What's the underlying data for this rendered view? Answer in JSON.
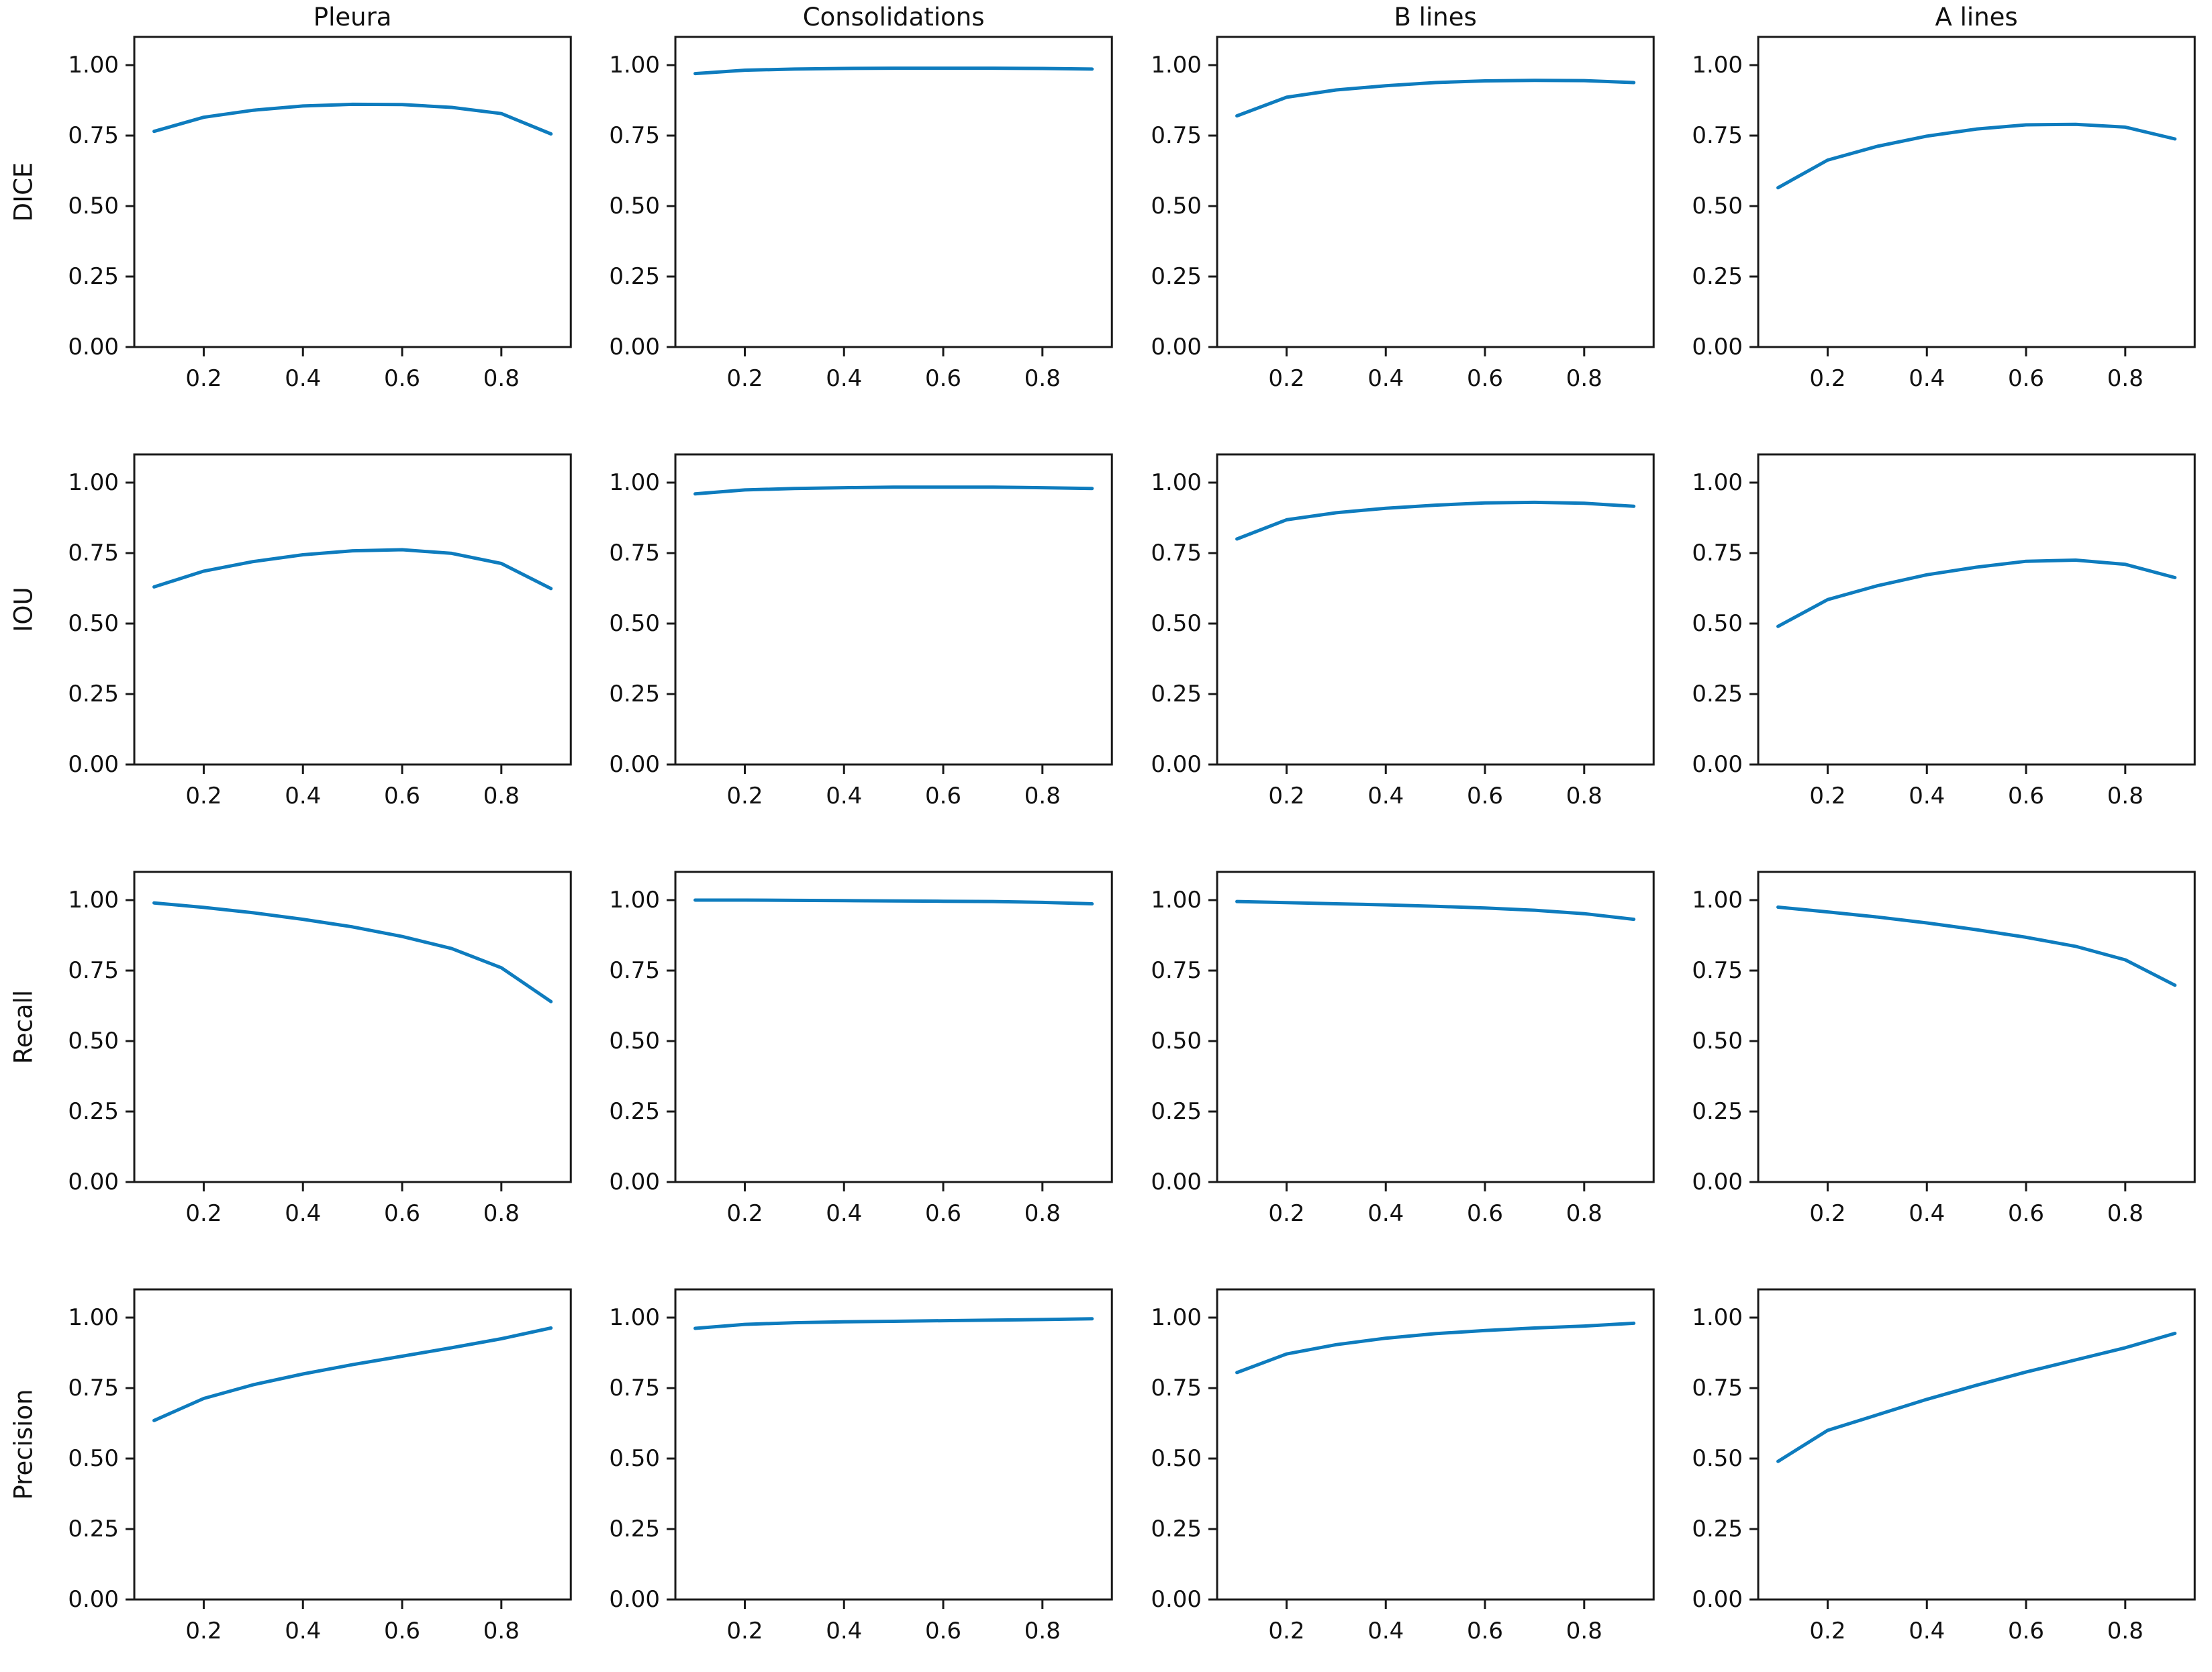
{
  "figure": {
    "background": "#ffffff",
    "line_color": "#0e7cbe",
    "spine_color": "#1a1a1a",
    "tick_label_color": "#111111"
  },
  "chart_data": {
    "type": "line",
    "layout": "4x4-grid",
    "row_labels": [
      "DICE",
      "IOU",
      "Recall",
      "Precision"
    ],
    "col_titles": [
      "Pleura",
      "Consolidations",
      "B lines",
      "A lines"
    ],
    "x": [
      0.1,
      0.2,
      0.3,
      0.4,
      0.5,
      0.6,
      0.7,
      0.8,
      0.9
    ],
    "x_ticks": [
      0.2,
      0.4,
      0.6,
      0.8
    ],
    "x_tick_labels": [
      "0.2",
      "0.4",
      "0.6",
      "0.8"
    ],
    "y_ticks": [
      0.0,
      0.25,
      0.5,
      0.75,
      1.0
    ],
    "y_tick_labels": [
      "0.00",
      "0.25",
      "0.50",
      "0.75",
      "1.00"
    ],
    "xlim": [
      0.06,
      0.94
    ],
    "ylim": [
      0.0,
      1.1
    ],
    "grid": false,
    "legend": "none",
    "cells": [
      {
        "metric": "DICE",
        "class": "Pleura",
        "values": [
          0.765,
          0.815,
          0.84,
          0.855,
          0.861,
          0.86,
          0.85,
          0.828,
          0.756
        ]
      },
      {
        "metric": "DICE",
        "class": "Consolidations",
        "values": [
          0.97,
          0.982,
          0.986,
          0.988,
          0.989,
          0.989,
          0.989,
          0.988,
          0.986
        ]
      },
      {
        "metric": "DICE",
        "class": "B lines",
        "values": [
          0.82,
          0.886,
          0.912,
          0.927,
          0.938,
          0.944,
          0.946,
          0.945,
          0.938
        ]
      },
      {
        "metric": "DICE",
        "class": "A lines",
        "values": [
          0.565,
          0.663,
          0.712,
          0.748,
          0.773,
          0.788,
          0.79,
          0.78,
          0.738
        ]
      },
      {
        "metric": "IOU",
        "class": "Pleura",
        "values": [
          0.63,
          0.686,
          0.72,
          0.744,
          0.758,
          0.762,
          0.749,
          0.713,
          0.624
        ]
      },
      {
        "metric": "IOU",
        "class": "Consolidations",
        "values": [
          0.96,
          0.974,
          0.979,
          0.982,
          0.984,
          0.984,
          0.984,
          0.982,
          0.979
        ]
      },
      {
        "metric": "IOU",
        "class": "B lines",
        "values": [
          0.8,
          0.868,
          0.893,
          0.909,
          0.92,
          0.928,
          0.93,
          0.927,
          0.916
        ]
      },
      {
        "metric": "IOU",
        "class": "A lines",
        "values": [
          0.49,
          0.585,
          0.634,
          0.673,
          0.7,
          0.721,
          0.725,
          0.71,
          0.663
        ]
      },
      {
        "metric": "Recall",
        "class": "Pleura",
        "values": [
          0.99,
          0.974,
          0.955,
          0.932,
          0.905,
          0.871,
          0.828,
          0.76,
          0.64
        ]
      },
      {
        "metric": "Recall",
        "class": "Consolidations",
        "values": [
          1.0,
          1.0,
          0.999,
          0.998,
          0.997,
          0.996,
          0.995,
          0.992,
          0.987
        ]
      },
      {
        "metric": "Recall",
        "class": "B lines",
        "values": [
          0.995,
          0.991,
          0.987,
          0.983,
          0.978,
          0.972,
          0.964,
          0.952,
          0.932
        ]
      },
      {
        "metric": "Recall",
        "class": "A lines",
        "values": [
          0.975,
          0.958,
          0.94,
          0.919,
          0.895,
          0.868,
          0.836,
          0.788,
          0.698
        ]
      },
      {
        "metric": "Precision",
        "class": "Pleura",
        "values": [
          0.635,
          0.713,
          0.762,
          0.8,
          0.833,
          0.863,
          0.893,
          0.925,
          0.963
        ]
      },
      {
        "metric": "Precision",
        "class": "Consolidations",
        "values": [
          0.962,
          0.976,
          0.982,
          0.985,
          0.987,
          0.989,
          0.991,
          0.993,
          0.996
        ]
      },
      {
        "metric": "Precision",
        "class": "B lines",
        "values": [
          0.805,
          0.871,
          0.904,
          0.927,
          0.943,
          0.954,
          0.963,
          0.97,
          0.98
        ]
      },
      {
        "metric": "Precision",
        "class": "A lines",
        "values": [
          0.49,
          0.6,
          0.655,
          0.71,
          0.76,
          0.807,
          0.85,
          0.893,
          0.944
        ]
      }
    ]
  }
}
